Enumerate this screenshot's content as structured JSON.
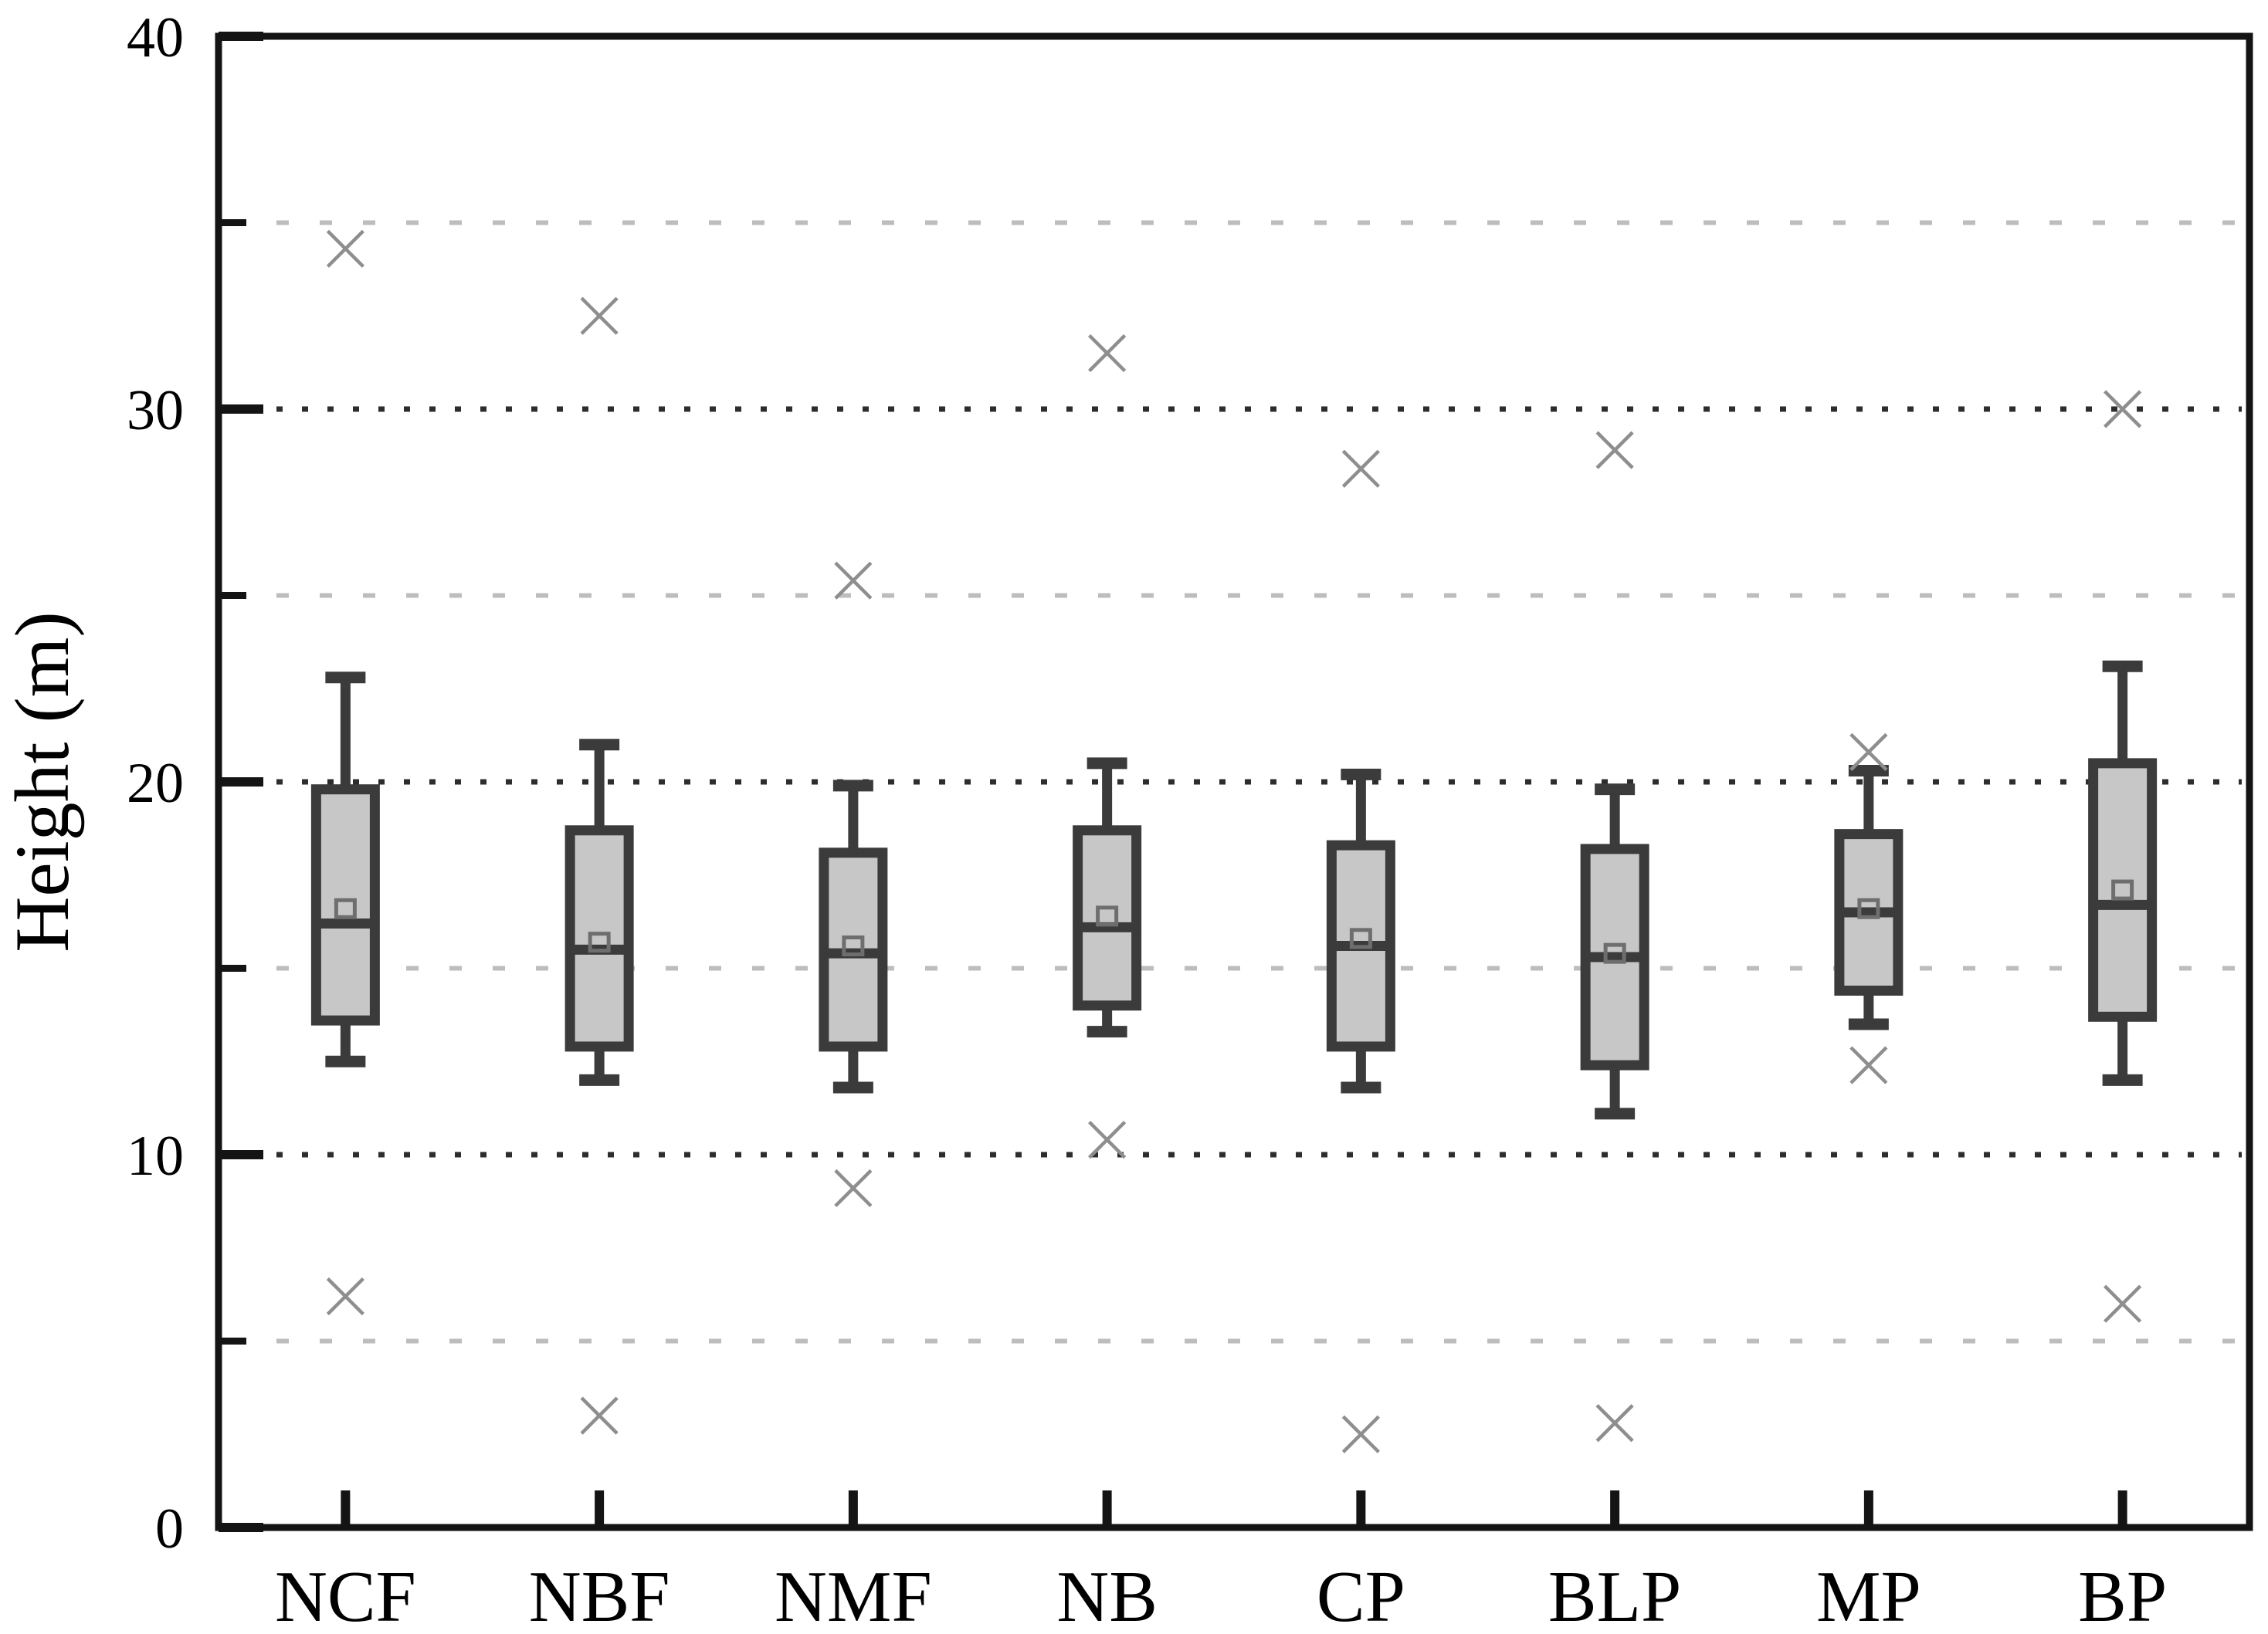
{
  "chart_data": {
    "type": "box",
    "title": "",
    "xlabel": "",
    "ylabel": "Height (m)",
    "ylim": [
      0,
      40
    ],
    "y_major_ticks": [
      0,
      10,
      20,
      30,
      40
    ],
    "y_major_tick_labels": [
      "0",
      "10",
      "20",
      "30",
      "40"
    ],
    "y_minor_ticks": [
      5,
      15,
      25,
      35
    ],
    "grid": {
      "major_gridline_values": [
        10,
        20,
        30
      ],
      "minor_gridline_values": [
        5,
        15,
        25,
        35
      ],
      "major_style": "dark-dotted",
      "minor_style": "light-dashed"
    },
    "legend": "none",
    "categories": [
      "NCF",
      "NBF",
      "NMF",
      "NB",
      "CP",
      "BLP",
      "MP",
      "BP"
    ],
    "series": [
      {
        "category": "NCF",
        "whisker_low": 12.5,
        "q1": 13.6,
        "median": 16.2,
        "mean": 16.6,
        "q3": 19.8,
        "whisker_high": 22.8,
        "outliers": [
          34.3,
          6.2
        ]
      },
      {
        "category": "NBF",
        "whisker_low": 12.0,
        "q1": 12.9,
        "median": 15.5,
        "mean": 15.7,
        "q3": 18.7,
        "whisker_high": 21.0,
        "outliers": [
          32.5,
          3.0
        ]
      },
      {
        "category": "NMF",
        "whisker_low": 11.8,
        "q1": 12.9,
        "median": 15.4,
        "mean": 15.6,
        "q3": 18.1,
        "whisker_high": 19.9,
        "outliers": [
          25.4,
          9.1
        ]
      },
      {
        "category": "NB",
        "whisker_low": 13.3,
        "q1": 14.0,
        "median": 16.1,
        "mean": 16.4,
        "q3": 18.7,
        "whisker_high": 20.5,
        "outliers": [
          31.5,
          10.4
        ]
      },
      {
        "category": "CP",
        "whisker_low": 11.8,
        "q1": 12.9,
        "median": 15.6,
        "mean": 15.8,
        "q3": 18.3,
        "whisker_high": 20.2,
        "outliers": [
          28.4,
          2.5
        ]
      },
      {
        "category": "BLP",
        "whisker_low": 11.1,
        "q1": 12.4,
        "median": 15.3,
        "mean": 15.4,
        "q3": 18.2,
        "whisker_high": 19.8,
        "outliers": [
          28.9,
          2.8
        ]
      },
      {
        "category": "MP",
        "whisker_low": 13.5,
        "q1": 14.4,
        "median": 16.5,
        "mean": 16.6,
        "q3": 18.6,
        "whisker_high": 20.3,
        "outliers": [
          20.8,
          12.4
        ]
      },
      {
        "category": "BP",
        "whisker_low": 12.0,
        "q1": 13.7,
        "median": 16.7,
        "mean": 17.1,
        "q3": 20.5,
        "whisker_high": 23.1,
        "outliers": [
          30.0,
          6.0
        ]
      }
    ],
    "marker_legend": {
      "mean_marker": "small open square",
      "outlier_marker": "x cross"
    },
    "style": {
      "background": "#ffffff",
      "box_fill": "#c7c7c7",
      "box_stroke": "#3b3b3b",
      "median_color": "#3b3b3b",
      "whisker_color": "#3b3b3b",
      "mean_marker_color": "#6e6e6e",
      "outlier_color": "#8e8e8e",
      "major_grid_color": "#2d2d2d",
      "minor_grid_color": "#bdbdbd",
      "axis_color": "#141414",
      "text_color": "#000000"
    }
  }
}
